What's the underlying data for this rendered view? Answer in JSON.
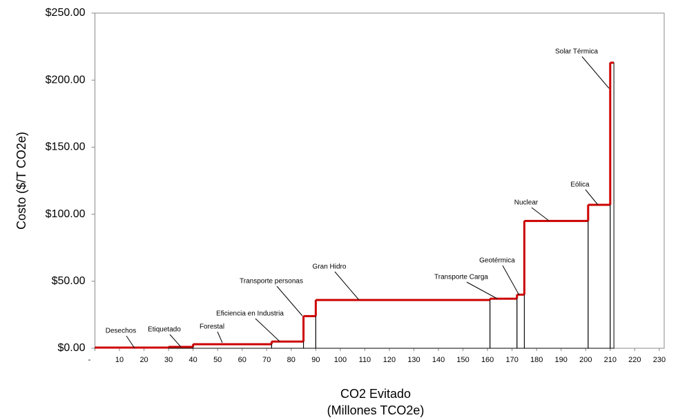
{
  "chart_data": {
    "type": "step_bar",
    "ylabel": "Costo ($/T CO2e)",
    "xlabel": [
      "CO2 Evitado",
      "(Millones TCO2e)"
    ],
    "categories": [
      "Desechos",
      "Etiquetado",
      "Forestal",
      "Eficiencia en Industria",
      "Transporte personas",
      "Gran Hidro",
      "Transporte Carga",
      "Geotérmica",
      "Nuclear",
      "Eólica",
      "Solar Térmica"
    ],
    "widths": [
      30,
      10,
      32,
      13,
      5,
      71,
      11,
      3,
      26,
      9,
      1.5
    ],
    "values": [
      0.5,
      1,
      3,
      5,
      24,
      36,
      37,
      40,
      95,
      107,
      213
    ],
    "color": "#cc0000",
    "xlim": [
      0,
      232
    ],
    "xticks": [
      {
        "value": 0,
        "label": "-"
      },
      10,
      20,
      30,
      40,
      50,
      60,
      70,
      80,
      90,
      100,
      110,
      120,
      130,
      140,
      150,
      160,
      170,
      180,
      190,
      200,
      210,
      220,
      230
    ],
    "ylim": [
      0,
      250
    ],
    "yticks": [
      {
        "value": 0,
        "label": "$0.00"
      },
      {
        "value": 50,
        "label": "$50.00"
      },
      {
        "value": 100,
        "label": "$100.00"
      },
      {
        "value": 150,
        "label": "$150.00"
      },
      {
        "value": 200,
        "label": "$200.00"
      },
      {
        "value": 250,
        "label": "$250.00"
      }
    ]
  }
}
